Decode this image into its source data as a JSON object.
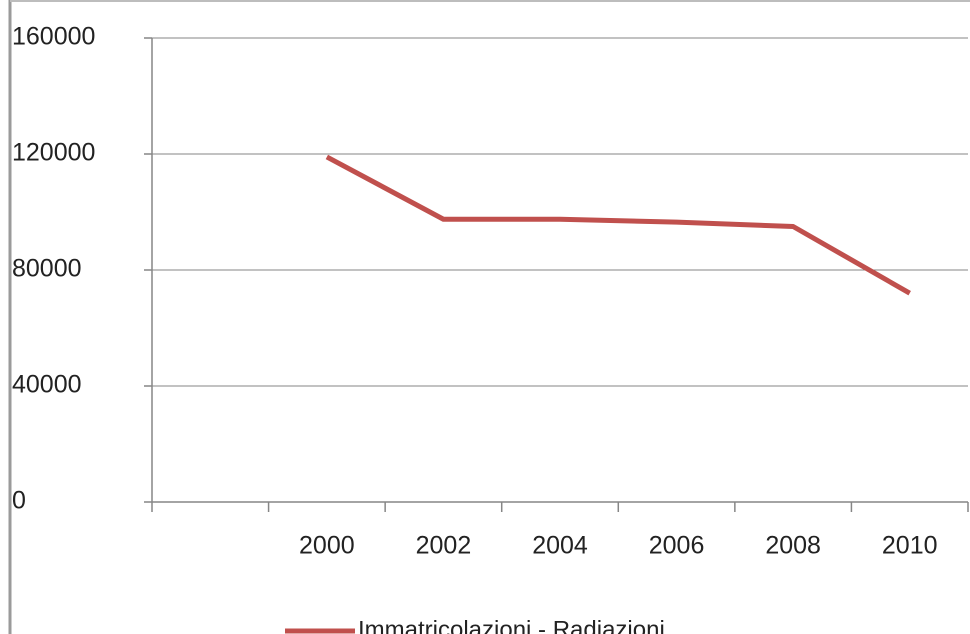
{
  "chart_data": {
    "type": "line",
    "categories": [
      null,
      "2000",
      "2002",
      "2004",
      "2006",
      "2008",
      "2010"
    ],
    "series": [
      {
        "name": "Immatricolazioni - Radiazioni",
        "color": "#c0504d",
        "values": [
          null,
          119000,
          97500,
          97500,
          96500,
          95000,
          72000
        ]
      }
    ],
    "ylim": [
      0,
      160000
    ],
    "yticks": [
      0,
      40000,
      80000,
      120000,
      160000
    ],
    "grid": true,
    "legend": "bottom"
  }
}
